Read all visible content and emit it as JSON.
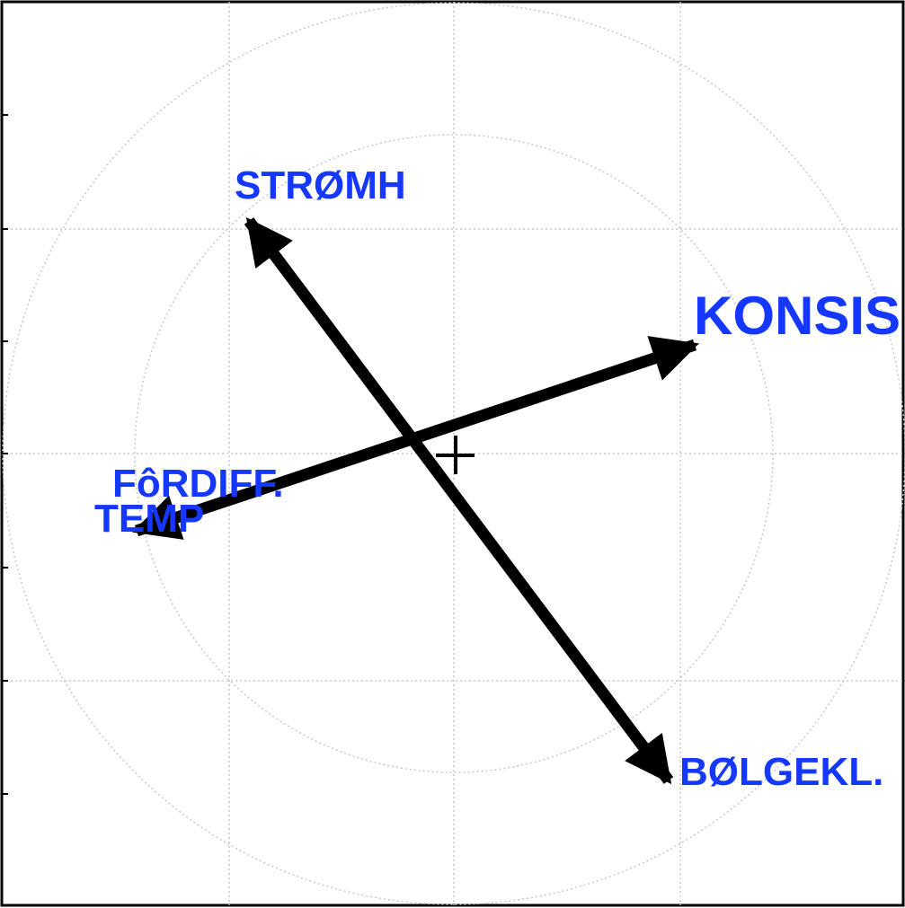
{
  "labels": [
    "STRØMH",
    "KONSIS",
    "FôRDIFF.",
    "TEMP",
    "BØLGEKL."
  ]
}
